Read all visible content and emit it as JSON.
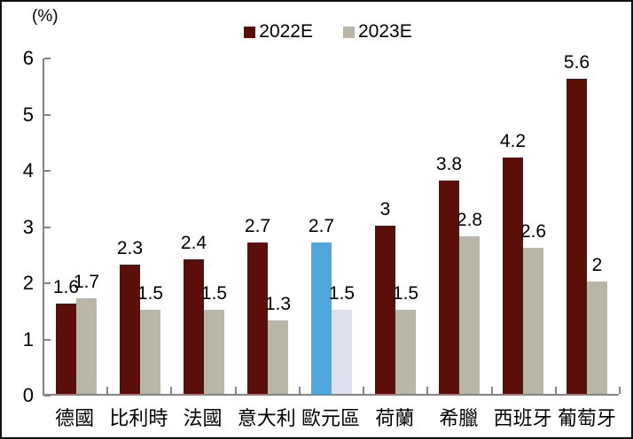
{
  "chart_data": {
    "type": "bar",
    "title": "",
    "unit_label": "(%)",
    "categories": [
      "德國",
      "比利時",
      "法國",
      "意大利",
      "歐元區",
      "荷蘭",
      "希臘",
      "西班牙",
      "葡萄牙"
    ],
    "series": [
      {
        "name": "2022E",
        "color": "#5C0F08",
        "highlight_color": "#4FA7DE",
        "values": [
          1.6,
          2.3,
          2.4,
          2.7,
          2.7,
          3,
          3.8,
          4.2,
          5.6
        ],
        "labels": [
          "1.6",
          "2.3",
          "2.4",
          "2.7",
          "2.7",
          "3",
          "3.8",
          "4.2",
          "5.6"
        ]
      },
      {
        "name": "2023E",
        "color": "#B9B6A6",
        "highlight_color": "#DCE0EF",
        "values": [
          1.7,
          1.5,
          1.5,
          1.3,
          1.5,
          1.5,
          2.8,
          2.6,
          2
        ],
        "labels": [
          "1.7",
          "1.5",
          "1.5",
          "1.3",
          "1.5",
          "1.5",
          "2.8",
          "2.6",
          "2"
        ]
      }
    ],
    "highlight_category": "歐元區",
    "highlight_index": 4,
    "ylim": [
      0,
      6
    ],
    "yticks": [
      0,
      1,
      2,
      3,
      4,
      5,
      6
    ],
    "grid": false,
    "legend_position": "top-center",
    "axis_line_color": "#848484",
    "frame_border_color": "#111111"
  }
}
